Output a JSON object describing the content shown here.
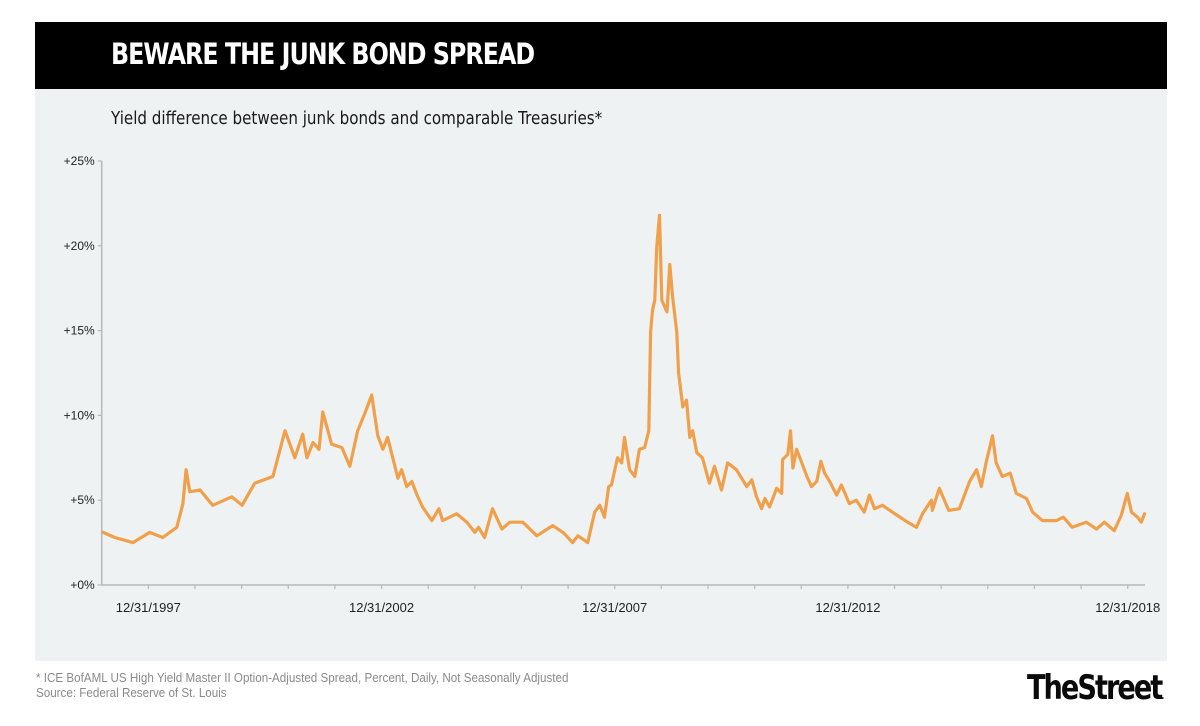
{
  "header": {
    "title": "BEWARE THE JUNK BOND SPREAD"
  },
  "subtitle": "Yield difference between junk bonds and comparable Treasuries*",
  "footer": {
    "footnote": "* ICE BofAML US High Yield Master II Option-Adjusted Spread, Percent, Daily, Not Seasonally Adjusted",
    "source": "Source: Federal Reserve of St. Louis",
    "logo": "TheStreet",
    "logo_dot": "."
  },
  "colors": {
    "line": "#f0a04b",
    "panel_bg": "#eef2f3",
    "header_bg": "#000000",
    "axis": "#b5b8ba"
  },
  "chart_data": {
    "type": "line",
    "title": "BEWARE THE JUNK BOND SPREAD",
    "subtitle": "Yield difference between junk bonds and comparable Treasuries*",
    "xlabel": "",
    "ylabel": "",
    "x_unit": "decimal year (1998.0 = 12/31/1997)",
    "xlim": [
      1997.0,
      2019.37
    ],
    "ylim": [
      0,
      25
    ],
    "grid": false,
    "legend": "none",
    "yticks": [
      {
        "value": 0,
        "label": "+0%"
      },
      {
        "value": 5,
        "label": "+5%"
      },
      {
        "value": 10,
        "label": "+10%"
      },
      {
        "value": 15,
        "label": "+15%"
      },
      {
        "value": 20,
        "label": "+20%"
      },
      {
        "value": 25,
        "label": "+25%"
      }
    ],
    "xticks_minor": [
      1998,
      1999,
      2000,
      2001,
      2002,
      2003,
      2004,
      2005,
      2006,
      2007,
      2008,
      2009,
      2010,
      2011,
      2012,
      2013,
      2014,
      2015,
      2016,
      2017,
      2018,
      2019
    ],
    "xticks": [
      {
        "value": 1998.0,
        "label": "12/31/1997"
      },
      {
        "value": 2003.0,
        "label": "12/31/2002"
      },
      {
        "value": 2008.0,
        "label": "12/31/2007"
      },
      {
        "value": 2013.0,
        "label": "12/31/2012"
      },
      {
        "value": 2019.0,
        "label": "12/31/2018"
      }
    ],
    "series": [
      {
        "name": "High Yield Option-Adjusted Spread (%)",
        "x": [
          1997.03,
          1997.28,
          1997.67,
          1998.03,
          1998.31,
          1998.61,
          1998.74,
          1998.81,
          1998.89,
          1999.11,
          1999.38,
          1999.79,
          2000.01,
          2000.28,
          2000.67,
          2000.93,
          2001.14,
          2001.31,
          2001.4,
          2001.53,
          2001.66,
          2001.74,
          2001.93,
          2002.15,
          2002.32,
          2002.49,
          2002.64,
          2002.79,
          2002.92,
          2003.03,
          2003.13,
          2003.35,
          2003.43,
          2003.54,
          2003.65,
          2003.76,
          2003.88,
          2004.08,
          2004.23,
          2004.31,
          2004.61,
          2004.83,
          2005.0,
          2005.08,
          2005.21,
          2005.38,
          2005.58,
          2005.75,
          2006.03,
          2006.33,
          2006.67,
          2006.89,
          2007.1,
          2007.21,
          2007.42,
          2007.57,
          2007.68,
          2007.78,
          2007.87,
          2007.93,
          2008.06,
          2008.15,
          2008.21,
          2008.32,
          2008.43,
          2008.53,
          2008.64,
          2008.73,
          2008.77,
          2008.81,
          2008.86,
          2008.9,
          2008.96,
          2009.01,
          2009.12,
          2009.18,
          2009.24,
          2009.33,
          2009.37,
          2009.46,
          2009.54,
          2009.61,
          2009.67,
          2009.76,
          2009.88,
          2010.03,
          2010.14,
          2010.29,
          2010.42,
          2010.61,
          2010.83,
          2010.94,
          2011.04,
          2011.15,
          2011.22,
          2011.32,
          2011.47,
          2011.58,
          2011.6,
          2011.71,
          2011.77,
          2011.82,
          2011.9,
          2011.97,
          2012.12,
          2012.22,
          2012.33,
          2012.42,
          2012.5,
          2012.61,
          2012.76,
          2012.86,
          2013.03,
          2013.18,
          2013.35,
          2013.46,
          2013.57,
          2013.74,
          2014.06,
          2014.28,
          2014.47,
          2014.6,
          2014.79,
          2014.81,
          2014.96,
          2015.16,
          2015.39,
          2015.61,
          2015.76,
          2015.86,
          2015.97,
          2016.1,
          2016.18,
          2016.31,
          2016.48,
          2016.61,
          2016.83,
          2016.96,
          2017.17,
          2017.47,
          2017.62,
          2017.81,
          2018.11,
          2018.33,
          2018.5,
          2018.71,
          2018.86,
          2018.99,
          2019.08,
          2019.21,
          2019.29,
          2019.36
        ],
        "values": [
          3.1,
          2.8,
          2.5,
          3.1,
          2.8,
          3.4,
          4.8,
          6.8,
          5.5,
          5.6,
          4.7,
          5.2,
          4.7,
          6.0,
          6.4,
          9.1,
          7.5,
          8.9,
          7.5,
          8.4,
          8.0,
          10.2,
          8.3,
          8.1,
          7.0,
          9.1,
          10.1,
          11.2,
          8.8,
          8.0,
          8.7,
          6.3,
          6.8,
          5.8,
          6.1,
          5.3,
          4.6,
          3.8,
          4.5,
          3.8,
          4.2,
          3.7,
          3.1,
          3.4,
          2.8,
          4.5,
          3.3,
          3.7,
          3.7,
          2.9,
          3.5,
          3.1,
          2.5,
          2.9,
          2.5,
          4.3,
          4.7,
          4.0,
          5.8,
          5.9,
          7.5,
          7.2,
          8.7,
          6.8,
          6.4,
          8.0,
          8.1,
          9.1,
          14.9,
          16.2,
          16.8,
          19.9,
          21.8,
          16.8,
          16.1,
          18.9,
          17.0,
          14.9,
          12.5,
          10.5,
          10.9,
          8.7,
          9.1,
          7.8,
          7.5,
          6.0,
          7.0,
          5.6,
          7.2,
          6.8,
          5.8,
          6.2,
          5.2,
          4.5,
          5.1,
          4.6,
          5.7,
          5.4,
          7.4,
          7.7,
          9.1,
          6.9,
          8.0,
          7.5,
          6.4,
          5.8,
          6.1,
          7.3,
          6.6,
          6.1,
          5.3,
          5.9,
          4.8,
          5.0,
          4.3,
          5.3,
          4.5,
          4.7,
          4.1,
          3.7,
          3.4,
          4.2,
          5.0,
          4.4,
          5.7,
          4.4,
          4.5,
          6.1,
          6.8,
          5.8,
          7.3,
          8.8,
          7.2,
          6.4,
          6.6,
          5.4,
          5.1,
          4.3,
          3.8,
          3.8,
          4.0,
          3.4,
          3.7,
          3.3,
          3.7,
          3.2,
          4.1,
          5.4,
          4.3,
          4.0,
          3.7,
          4.2
        ]
      }
    ]
  }
}
